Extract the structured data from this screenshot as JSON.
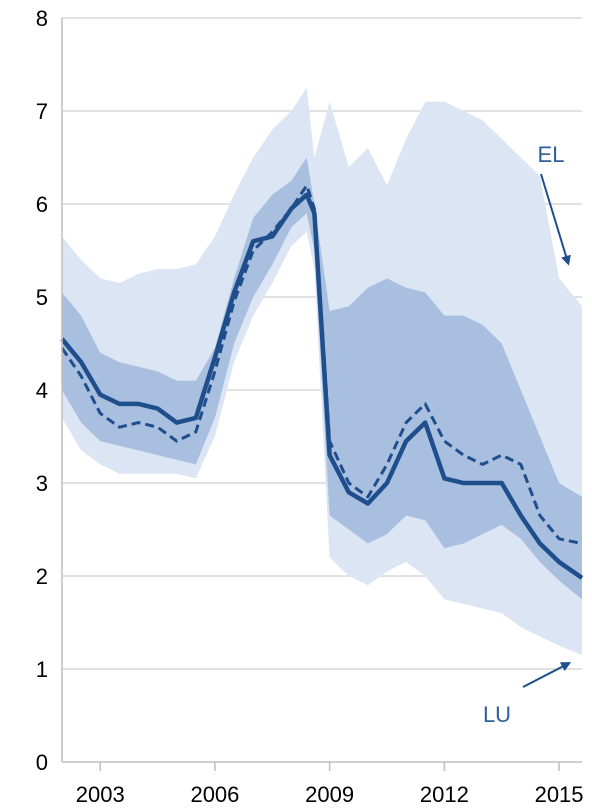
{
  "chart_data": {
    "type": "area",
    "title": "",
    "xlabel": "",
    "ylabel": "",
    "xlim": [
      2002.0,
      2015.6
    ],
    "ylim": [
      0,
      8
    ],
    "y_ticks": [
      0,
      1,
      2,
      3,
      4,
      5,
      6,
      7,
      8
    ],
    "x_ticks": [
      2003,
      2006,
      2009,
      2012,
      2015
    ],
    "x_tick_labels": [
      "2003",
      "2006",
      "2009",
      "2012",
      "2015"
    ],
    "grid": "horizontal",
    "colors": {
      "outer_band": "#dbe5f3",
      "inner_band": "#a9bfdf",
      "line": "#1f4e8c",
      "text": "#2f5f9a"
    },
    "annotations": [
      {
        "text": "EL",
        "target_x": 2015.4,
        "target_y": 5.25
      },
      {
        "text": "LU",
        "target_x": 2015.4,
        "target_y": 1.15
      }
    ],
    "x": [
      2002.0,
      2002.5,
      2003.0,
      2003.5,
      2004.0,
      2004.5,
      2005.0,
      2005.5,
      2006.0,
      2006.5,
      2007.0,
      2007.5,
      2008.0,
      2008.4,
      2008.6,
      2009.0,
      2009.5,
      2010.0,
      2010.5,
      2011.0,
      2011.5,
      2012.0,
      2012.5,
      2013.0,
      2013.5,
      2014.0,
      2014.5,
      2015.0,
      2015.6
    ],
    "series": [
      {
        "role": "outer_upper",
        "values": [
          5.65,
          5.4,
          5.2,
          5.15,
          5.25,
          5.3,
          5.3,
          5.35,
          5.65,
          6.1,
          6.5,
          6.8,
          7.0,
          7.25,
          6.5,
          7.1,
          6.4,
          6.6,
          6.2,
          6.7,
          7.1,
          7.1,
          7.0,
          6.9,
          6.7,
          6.5,
          6.3,
          5.2,
          4.9
        ]
      },
      {
        "role": "inner_upper",
        "values": [
          5.05,
          4.8,
          4.4,
          4.3,
          4.25,
          4.2,
          4.1,
          4.1,
          4.45,
          5.2,
          5.85,
          6.1,
          6.25,
          6.5,
          6.0,
          4.85,
          4.9,
          5.1,
          5.2,
          5.1,
          5.05,
          4.8,
          4.8,
          4.7,
          4.5,
          4.0,
          3.5,
          3.0,
          2.85
        ]
      },
      {
        "role": "inner_lower",
        "values": [
          4.0,
          3.65,
          3.45,
          3.4,
          3.35,
          3.3,
          3.25,
          3.2,
          3.7,
          4.5,
          5.0,
          5.35,
          5.75,
          5.9,
          5.5,
          2.65,
          2.5,
          2.35,
          2.45,
          2.65,
          2.6,
          2.3,
          2.35,
          2.45,
          2.55,
          2.4,
          2.15,
          1.95,
          1.75
        ]
      },
      {
        "role": "outer_lower",
        "values": [
          3.7,
          3.35,
          3.2,
          3.1,
          3.1,
          3.1,
          3.1,
          3.05,
          3.5,
          4.3,
          4.8,
          5.15,
          5.55,
          5.7,
          5.3,
          2.2,
          2.0,
          1.9,
          2.05,
          2.15,
          2.0,
          1.75,
          1.7,
          1.65,
          1.6,
          1.45,
          1.35,
          1.25,
          1.15
        ]
      },
      {
        "role": "main_solid",
        "values": [
          4.55,
          4.3,
          3.95,
          3.85,
          3.85,
          3.8,
          3.65,
          3.7,
          4.35,
          5.05,
          5.6,
          5.65,
          5.95,
          6.1,
          5.9,
          3.3,
          2.9,
          2.78,
          3.0,
          3.45,
          3.65,
          3.05,
          3.0,
          3.0,
          3.0,
          2.65,
          2.35,
          2.15,
          1.98
        ]
      },
      {
        "role": "main_dashed",
        "values": [
          4.45,
          4.15,
          3.75,
          3.6,
          3.65,
          3.6,
          3.45,
          3.55,
          4.2,
          4.95,
          5.5,
          5.7,
          5.95,
          6.2,
          5.95,
          3.45,
          3.0,
          2.85,
          3.2,
          3.65,
          3.85,
          3.45,
          3.3,
          3.2,
          3.3,
          3.2,
          2.65,
          2.4,
          2.35
        ]
      }
    ]
  }
}
